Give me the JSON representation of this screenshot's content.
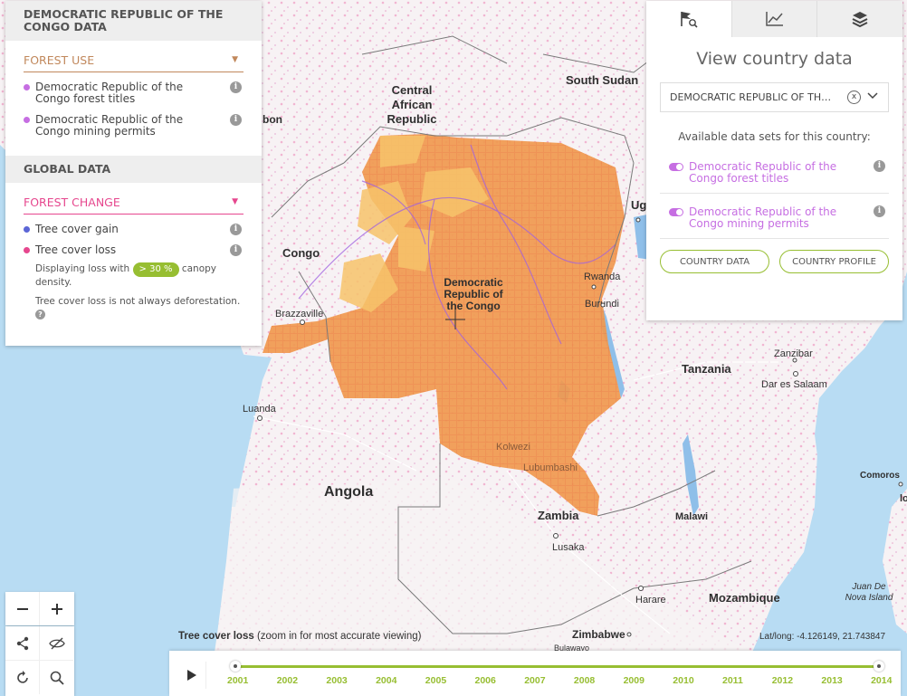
{
  "colors": {
    "accent_green": "#97be32",
    "forest_use": "#c1885c",
    "forest_change": "#e6478e",
    "forest_titles": "#c66ee2",
    "mining_permits": "#f0994f",
    "tree_gain": "#5c66d6",
    "tree_loss": "#e6478e"
  },
  "left_panel": {
    "title": "DEMOCRATIC REPUBLIC OF THE CONGO DATA",
    "forest_use": {
      "label": "FOREST USE",
      "items": [
        {
          "label": "Democratic Republic of the Congo forest titles",
          "color": "#c66ee2"
        },
        {
          "label": "Democratic Republic of the Congo mining permits",
          "color": "#c66ee2"
        }
      ]
    },
    "global": {
      "title": "GLOBAL DATA",
      "forest_change": {
        "label": "FOREST CHANGE",
        "items": [
          {
            "label": "Tree cover gain",
            "color": "#5c66d6"
          },
          {
            "label": "Tree cover loss",
            "color": "#e6478e"
          }
        ],
        "note_prefix": "Displaying loss with",
        "canopy_value": "> 30 %",
        "note_suffix": "canopy density.",
        "note2": "Tree cover loss is not always deforestation."
      }
    }
  },
  "right_panel": {
    "tabs": [
      {
        "name": "country-search",
        "icon": "flag-search-icon",
        "active": true
      },
      {
        "name": "analysis",
        "icon": "line-chart-icon",
        "active": false
      },
      {
        "name": "layers",
        "icon": "layers-icon",
        "active": false
      }
    ],
    "title": "View country data",
    "selected_country": "DEMOCRATIC REPUBLIC OF THE CONGO",
    "clear_label": "x",
    "available_label": "Available data sets for this country:",
    "datasets": [
      {
        "label": "Democratic Republic of the Congo forest titles",
        "enabled": true
      },
      {
        "label": "Democratic Republic of the Congo mining permits",
        "enabled": true
      }
    ],
    "buttons": {
      "country_data": "COUNTRY DATA",
      "country_profile": "COUNTRY PROFILE"
    }
  },
  "map": {
    "labels": {
      "south_sudan": "South Sudan",
      "car": "Central African Republic",
      "drc": "Democratic Republic of the Congo",
      "congo": "Congo",
      "gabon_frag": "bon",
      "uganda_frag": "Ug",
      "rwanda": "Rwanda",
      "burundi": "Burundi",
      "tanzania": "Tanzania",
      "angola": "Angola",
      "zambia": "Zambia",
      "malawi": "Malawi",
      "mozambique": "Mozambique",
      "zimbabwe": "Zimbabwe",
      "comoros": "Comoros",
      "comoros_frag": "los",
      "brazzaville": "Brazzaville",
      "luanda": "Luanda",
      "kolwezi": "Kolwezi",
      "lubumbashi": "Lubumbashi",
      "lusaka": "Lusaka",
      "harare": "Harare",
      "zanzibar": "Zanzibar",
      "dar": "Dar es Salaam",
      "juan_de_nova": "Juan De Nova Island",
      "bulawayo_frag": "Bulawayo"
    }
  },
  "caption": {
    "bold": "Tree cover loss",
    "rest": "(zoom in for most accurate viewing)"
  },
  "latlong": "Lat/long: -4.126149, 21.743847",
  "timeline": {
    "years": [
      "2001",
      "2002",
      "2003",
      "2004",
      "2005",
      "2006",
      "2007",
      "2008",
      "2009",
      "2010",
      "2011",
      "2012",
      "2013",
      "2014"
    ],
    "start": "2001",
    "end": "2014"
  }
}
